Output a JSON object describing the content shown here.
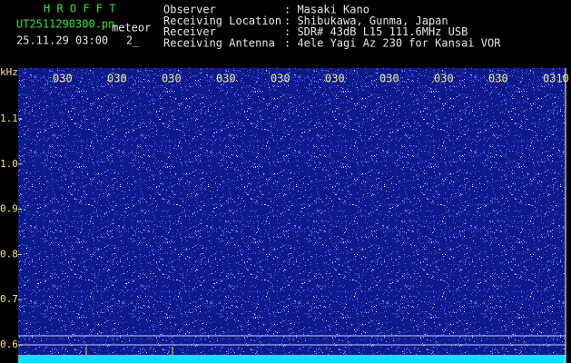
{
  "header": {
    "app": "H R O F F T",
    "file": "UT2511290300.pn",
    "file_suffix": "meteor",
    "datetime": "25.11.29 03:00",
    "index": "2_"
  },
  "info": [
    {
      "label": "Observer",
      "value": ": Masaki Kano"
    },
    {
      "label": "Receiving Location",
      "value": ": Shibukawa, Gunma, Japan"
    },
    {
      "label": "Receiver",
      "value": ": SDR# 43dB L15 111.6MHz USB"
    },
    {
      "label": "Receiving Antenna",
      "value": ": 4ele Yagi Az 230 for Kansai VOR"
    }
  ],
  "axis": {
    "unit": "kHz",
    "ticks": [
      "1.1",
      "1.0",
      "0.9",
      "0.8",
      "0.7",
      "0.6"
    ]
  },
  "time_labels": [
    "030",
    "030",
    "030",
    "030",
    "030",
    "030",
    "030",
    "030",
    "030",
    "0310"
  ]
}
